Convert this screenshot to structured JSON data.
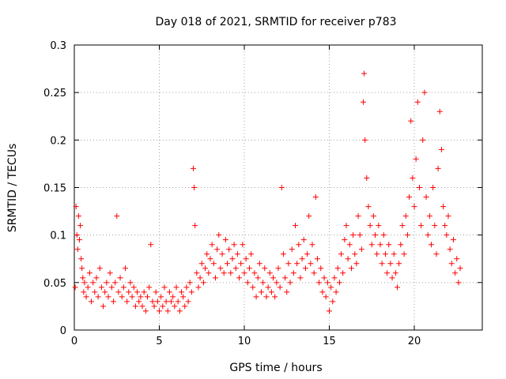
{
  "chart_data": {
    "type": "scatter",
    "title": "Day 018 of 2021, SRMTID for receiver p783",
    "xlabel": "GPS time / hours",
    "ylabel": "SRMTID / TECUs",
    "xlim": [
      0,
      24
    ],
    "ylim": [
      0,
      0.3
    ],
    "x_ticks": [
      0,
      5,
      10,
      15,
      20
    ],
    "x_tick_labels": [
      "0",
      "5",
      "10",
      "15",
      "20"
    ],
    "y_ticks": [
      0,
      0.05,
      0.1,
      0.15,
      0.2,
      0.25,
      0.3
    ],
    "y_tick_labels": [
      "0",
      "0.05",
      "0.1",
      "0.15",
      "0.2",
      "0.25",
      "0.3"
    ],
    "grid": true,
    "marker": "plus",
    "marker_color": "#ff0000",
    "series": [
      {
        "name": "SRMTID",
        "points": [
          [
            0.05,
            0.045
          ],
          [
            0.1,
            0.13
          ],
          [
            0.15,
            0.1
          ],
          [
            0.2,
            0.085
          ],
          [
            0.25,
            0.12
          ],
          [
            0.3,
            0.095
          ],
          [
            0.35,
            0.11
          ],
          [
            0.4,
            0.075
          ],
          [
            0.45,
            0.065
          ],
          [
            0.5,
            0.055
          ],
          [
            0.55,
            0.04
          ],
          [
            0.6,
            0.05
          ],
          [
            0.7,
            0.035
          ],
          [
            0.8,
            0.045
          ],
          [
            0.9,
            0.06
          ],
          [
            1.0,
            0.03
          ],
          [
            1.1,
            0.05
          ],
          [
            1.2,
            0.04
          ],
          [
            1.3,
            0.055
          ],
          [
            1.4,
            0.035
          ],
          [
            1.5,
            0.065
          ],
          [
            1.6,
            0.045
          ],
          [
            1.7,
            0.025
          ],
          [
            1.8,
            0.04
          ],
          [
            1.9,
            0.05
          ],
          [
            2.0,
            0.035
          ],
          [
            2.1,
            0.06
          ],
          [
            2.2,
            0.045
          ],
          [
            2.3,
            0.03
          ],
          [
            2.4,
            0.05
          ],
          [
            2.5,
            0.12
          ],
          [
            2.6,
            0.04
          ],
          [
            2.7,
            0.055
          ],
          [
            2.8,
            0.035
          ],
          [
            2.9,
            0.045
          ],
          [
            3.0,
            0.065
          ],
          [
            3.1,
            0.03
          ],
          [
            3.2,
            0.04
          ],
          [
            3.3,
            0.05
          ],
          [
            3.4,
            0.035
          ],
          [
            3.5,
            0.045
          ],
          [
            3.6,
            0.025
          ],
          [
            3.7,
            0.04
          ],
          [
            3.8,
            0.03
          ],
          [
            3.9,
            0.035
          ],
          [
            4.0,
            0.025
          ],
          [
            4.1,
            0.04
          ],
          [
            4.2,
            0.02
          ],
          [
            4.3,
            0.035
          ],
          [
            4.4,
            0.045
          ],
          [
            4.5,
            0.09
          ],
          [
            4.6,
            0.03
          ],
          [
            4.7,
            0.025
          ],
          [
            4.8,
            0.04
          ],
          [
            4.9,
            0.03
          ],
          [
            5.0,
            0.02
          ],
          [
            5.1,
            0.035
          ],
          [
            5.2,
            0.025
          ],
          [
            5.3,
            0.045
          ],
          [
            5.4,
            0.03
          ],
          [
            5.5,
            0.02
          ],
          [
            5.6,
            0.04
          ],
          [
            5.7,
            0.03
          ],
          [
            5.8,
            0.035
          ],
          [
            5.9,
            0.025
          ],
          [
            6.0,
            0.045
          ],
          [
            6.1,
            0.03
          ],
          [
            6.2,
            0.02
          ],
          [
            6.3,
            0.04
          ],
          [
            6.4,
            0.035
          ],
          [
            6.5,
            0.025
          ],
          [
            6.6,
            0.045
          ],
          [
            6.7,
            0.03
          ],
          [
            6.8,
            0.05
          ],
          [
            6.9,
            0.04
          ],
          [
            7.0,
            0.17
          ],
          [
            7.05,
            0.15
          ],
          [
            7.1,
            0.11
          ],
          [
            7.2,
            0.06
          ],
          [
            7.3,
            0.045
          ],
          [
            7.4,
            0.055
          ],
          [
            7.5,
            0.07
          ],
          [
            7.6,
            0.05
          ],
          [
            7.7,
            0.065
          ],
          [
            7.8,
            0.08
          ],
          [
            7.9,
            0.06
          ],
          [
            8.0,
            0.075
          ],
          [
            8.1,
            0.09
          ],
          [
            8.2,
            0.07
          ],
          [
            8.3,
            0.055
          ],
          [
            8.4,
            0.085
          ],
          [
            8.5,
            0.1
          ],
          [
            8.6,
            0.065
          ],
          [
            8.7,
            0.08
          ],
          [
            8.8,
            0.06
          ],
          [
            8.9,
            0.095
          ],
          [
            9.0,
            0.07
          ],
          [
            9.1,
            0.085
          ],
          [
            9.2,
            0.06
          ],
          [
            9.3,
            0.075
          ],
          [
            9.4,
            0.09
          ],
          [
            9.5,
            0.065
          ],
          [
            9.6,
            0.08
          ],
          [
            9.7,
            0.055
          ],
          [
            9.8,
            0.07
          ],
          [
            9.9,
            0.09
          ],
          [
            10.0,
            0.06
          ],
          [
            10.1,
            0.075
          ],
          [
            10.2,
            0.05
          ],
          [
            10.3,
            0.065
          ],
          [
            10.4,
            0.08
          ],
          [
            10.5,
            0.045
          ],
          [
            10.6,
            0.06
          ],
          [
            10.7,
            0.035
          ],
          [
            10.8,
            0.055
          ],
          [
            10.9,
            0.07
          ],
          [
            11.0,
            0.04
          ],
          [
            11.1,
            0.05
          ],
          [
            11.2,
            0.065
          ],
          [
            11.3,
            0.035
          ],
          [
            11.4,
            0.045
          ],
          [
            11.5,
            0.06
          ],
          [
            11.6,
            0.04
          ],
          [
            11.7,
            0.055
          ],
          [
            11.8,
            0.035
          ],
          [
            11.9,
            0.05
          ],
          [
            12.0,
            0.065
          ],
          [
            12.1,
            0.045
          ],
          [
            12.2,
            0.15
          ],
          [
            12.3,
            0.08
          ],
          [
            12.4,
            0.055
          ],
          [
            12.5,
            0.04
          ],
          [
            12.6,
            0.07
          ],
          [
            12.7,
            0.05
          ],
          [
            12.8,
            0.085
          ],
          [
            12.9,
            0.06
          ],
          [
            13.0,
            0.11
          ],
          [
            13.1,
            0.07
          ],
          [
            13.2,
            0.09
          ],
          [
            13.3,
            0.055
          ],
          [
            13.4,
            0.075
          ],
          [
            13.5,
            0.095
          ],
          [
            13.6,
            0.065
          ],
          [
            13.7,
            0.08
          ],
          [
            13.8,
            0.12
          ],
          [
            13.9,
            0.07
          ],
          [
            14.0,
            0.09
          ],
          [
            14.1,
            0.06
          ],
          [
            14.2,
            0.14
          ],
          [
            14.3,
            0.075
          ],
          [
            14.4,
            0.05
          ],
          [
            14.5,
            0.065
          ],
          [
            14.6,
            0.04
          ],
          [
            14.7,
            0.055
          ],
          [
            14.8,
            0.035
          ],
          [
            14.9,
            0.05
          ],
          [
            15.0,
            0.02
          ],
          [
            15.1,
            0.045
          ],
          [
            15.2,
            0.03
          ],
          [
            15.3,
            0.055
          ],
          [
            15.4,
            0.04
          ],
          [
            15.5,
            0.065
          ],
          [
            15.6,
            0.05
          ],
          [
            15.7,
            0.08
          ],
          [
            15.8,
            0.06
          ],
          [
            15.9,
            0.095
          ],
          [
            16.0,
            0.11
          ],
          [
            16.1,
            0.075
          ],
          [
            16.2,
            0.09
          ],
          [
            16.3,
            0.065
          ],
          [
            16.4,
            0.1
          ],
          [
            16.5,
            0.08
          ],
          [
            16.6,
            0.07
          ],
          [
            16.7,
            0.12
          ],
          [
            16.8,
            0.1
          ],
          [
            16.9,
            0.085
          ],
          [
            17.0,
            0.24
          ],
          [
            17.05,
            0.27
          ],
          [
            17.1,
            0.2
          ],
          [
            17.2,
            0.16
          ],
          [
            17.3,
            0.13
          ],
          [
            17.4,
            0.11
          ],
          [
            17.5,
            0.09
          ],
          [
            17.6,
            0.12
          ],
          [
            17.7,
            0.1
          ],
          [
            17.8,
            0.08
          ],
          [
            17.9,
            0.11
          ],
          [
            18.0,
            0.09
          ],
          [
            18.1,
            0.07
          ],
          [
            18.2,
            0.1
          ],
          [
            18.3,
            0.08
          ],
          [
            18.4,
            0.06
          ],
          [
            18.5,
            0.09
          ],
          [
            18.6,
            0.07
          ],
          [
            18.7,
            0.055
          ],
          [
            18.8,
            0.08
          ],
          [
            18.9,
            0.06
          ],
          [
            19.0,
            0.045
          ],
          [
            19.1,
            0.07
          ],
          [
            19.2,
            0.09
          ],
          [
            19.3,
            0.11
          ],
          [
            19.4,
            0.08
          ],
          [
            19.5,
            0.12
          ],
          [
            19.6,
            0.1
          ],
          [
            19.7,
            0.14
          ],
          [
            19.8,
            0.22
          ],
          [
            19.9,
            0.16
          ],
          [
            20.0,
            0.13
          ],
          [
            20.1,
            0.18
          ],
          [
            20.2,
            0.24
          ],
          [
            20.3,
            0.15
          ],
          [
            20.4,
            0.11
          ],
          [
            20.5,
            0.2
          ],
          [
            20.6,
            0.25
          ],
          [
            20.7,
            0.14
          ],
          [
            20.8,
            0.1
          ],
          [
            20.9,
            0.12
          ],
          [
            21.0,
            0.09
          ],
          [
            21.1,
            0.15
          ],
          [
            21.2,
            0.11
          ],
          [
            21.3,
            0.08
          ],
          [
            21.4,
            0.17
          ],
          [
            21.5,
            0.23
          ],
          [
            21.6,
            0.19
          ],
          [
            21.7,
            0.13
          ],
          [
            21.8,
            0.11
          ],
          [
            21.9,
            0.1
          ],
          [
            22.0,
            0.12
          ],
          [
            22.1,
            0.085
          ],
          [
            22.2,
            0.07
          ],
          [
            22.3,
            0.095
          ],
          [
            22.4,
            0.06
          ],
          [
            22.5,
            0.075
          ],
          [
            22.6,
            0.05
          ],
          [
            22.7,
            0.065
          ]
        ]
      }
    ]
  }
}
